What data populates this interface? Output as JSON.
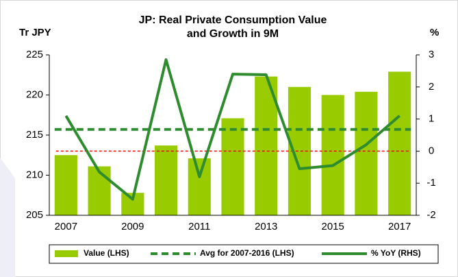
{
  "chart_data": {
    "type": "bar_line",
    "title": [
      "JP: Real Private Consumption Value",
      "and Growth in 9M"
    ],
    "y_label": "Tr JPY",
    "y2_label": "%",
    "categories": [
      "2007",
      null,
      "2009",
      null,
      "2011",
      null,
      "2013",
      null,
      "2015",
      null,
      "2017"
    ],
    "series": [
      {
        "name": "Value (LHS)",
        "kind": "bar",
        "color": "#99cc00",
        "values": [
          212.5,
          211.1,
          207.8,
          213.7,
          212.1,
          217.1,
          222.3,
          221.0,
          220.0,
          220.4,
          222.9
        ]
      },
      {
        "name": "Avg for 2007-2016 (LHS)",
        "kind": "hline",
        "color": "#2e8b2e",
        "value": 215.7
      },
      {
        "name": "% YoY (RHS)",
        "kind": "line",
        "axis": "y2",
        "color": "#2e8b2e",
        "values": [
          1.1,
          -0.65,
          -1.5,
          2.85,
          -0.8,
          2.4,
          2.38,
          -0.55,
          -0.45,
          0.2,
          1.1
        ]
      }
    ],
    "ylim": [
      205,
      225
    ],
    "yticks": [
      205,
      210,
      215,
      220,
      225
    ],
    "y2lim": [
      -2,
      3
    ],
    "y2ticks": [
      -2,
      -1,
      0,
      1,
      2,
      3
    ],
    "y2_zero_line_color": "#ff0000",
    "legend": "bottom"
  }
}
